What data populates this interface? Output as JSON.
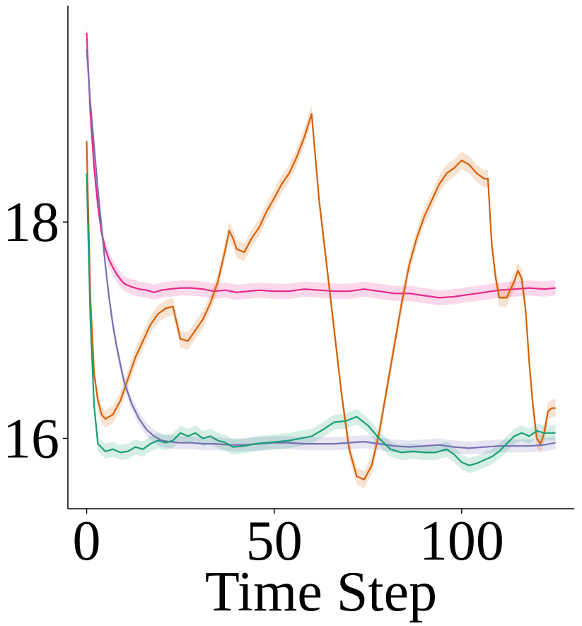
{
  "chart_data": {
    "type": "line",
    "title": "",
    "xlabel": "Time Step",
    "ylabel": "",
    "xlim": [
      -5,
      130
    ],
    "ylim": [
      15.35,
      20.0
    ],
    "xticks": [
      0,
      50,
      100
    ],
    "xtick_labels": [
      "0",
      "50",
      "100"
    ],
    "yticks": [
      16,
      18
    ],
    "ytick_labels": [
      "16",
      "18"
    ],
    "grid": false,
    "legend": "none",
    "series": [
      {
        "color": "#e7298a",
        "band": 0.07,
        "points": [
          [
            0,
            19.75
          ],
          [
            1,
            19.0
          ],
          [
            2,
            18.5
          ],
          [
            3,
            18.15
          ],
          [
            4,
            17.9
          ],
          [
            5,
            17.75
          ],
          [
            6,
            17.65
          ],
          [
            7,
            17.58
          ],
          [
            8,
            17.52
          ],
          [
            9,
            17.47
          ],
          [
            10,
            17.43
          ],
          [
            12,
            17.4
          ],
          [
            14,
            17.38
          ],
          [
            16,
            17.37
          ],
          [
            18,
            17.35
          ],
          [
            20,
            17.37
          ],
          [
            22,
            17.38
          ],
          [
            25,
            17.39
          ],
          [
            28,
            17.39
          ],
          [
            31,
            17.38
          ],
          [
            34,
            17.36
          ],
          [
            37,
            17.37
          ],
          [
            40,
            17.35
          ],
          [
            43,
            17.36
          ],
          [
            46,
            17.37
          ],
          [
            50,
            17.36
          ],
          [
            54,
            17.36
          ],
          [
            58,
            17.38
          ],
          [
            62,
            17.37
          ],
          [
            66,
            17.36
          ],
          [
            70,
            17.36
          ],
          [
            74,
            17.38
          ],
          [
            78,
            17.36
          ],
          [
            82,
            17.34
          ],
          [
            86,
            17.34
          ],
          [
            90,
            17.32
          ],
          [
            94,
            17.3
          ],
          [
            98,
            17.31
          ],
          [
            102,
            17.33
          ],
          [
            106,
            17.35
          ],
          [
            110,
            17.37
          ],
          [
            114,
            17.38
          ],
          [
            118,
            17.39
          ],
          [
            122,
            17.38
          ],
          [
            125,
            17.39
          ]
        ]
      },
      {
        "color": "#d95f02",
        "band": 0.08,
        "points": [
          [
            0,
            18.75
          ],
          [
            1,
            17.3
          ],
          [
            2,
            16.6
          ],
          [
            3,
            16.35
          ],
          [
            4,
            16.22
          ],
          [
            5,
            16.18
          ],
          [
            7,
            16.22
          ],
          [
            9,
            16.35
          ],
          [
            11,
            16.55
          ],
          [
            13,
            16.75
          ],
          [
            15,
            16.9
          ],
          [
            17,
            17.05
          ],
          [
            19,
            17.15
          ],
          [
            21,
            17.2
          ],
          [
            23,
            17.22
          ],
          [
            25,
            16.92
          ],
          [
            27,
            16.9
          ],
          [
            29,
            17.0
          ],
          [
            31,
            17.1
          ],
          [
            33,
            17.25
          ],
          [
            35,
            17.45
          ],
          [
            37,
            17.75
          ],
          [
            38,
            17.92
          ],
          [
            39,
            17.85
          ],
          [
            40,
            17.75
          ],
          [
            42,
            17.72
          ],
          [
            44,
            17.85
          ],
          [
            46,
            17.95
          ],
          [
            48,
            18.1
          ],
          [
            50,
            18.22
          ],
          [
            52,
            18.35
          ],
          [
            54,
            18.45
          ],
          [
            56,
            18.6
          ],
          [
            58,
            18.78
          ],
          [
            60,
            19.0
          ],
          [
            61,
            18.6
          ],
          [
            62,
            18.2
          ],
          [
            64,
            17.6
          ],
          [
            66,
            17.0
          ],
          [
            68,
            16.4
          ],
          [
            70,
            15.9
          ],
          [
            72,
            15.65
          ],
          [
            74,
            15.62
          ],
          [
            76,
            15.75
          ],
          [
            78,
            16.05
          ],
          [
            80,
            16.45
          ],
          [
            82,
            16.85
          ],
          [
            84,
            17.25
          ],
          [
            86,
            17.6
          ],
          [
            88,
            17.85
          ],
          [
            90,
            18.05
          ],
          [
            92,
            18.2
          ],
          [
            94,
            18.35
          ],
          [
            96,
            18.45
          ],
          [
            98,
            18.5
          ],
          [
            100,
            18.57
          ],
          [
            102,
            18.53
          ],
          [
            104,
            18.45
          ],
          [
            106,
            18.4
          ],
          [
            107,
            18.4
          ],
          [
            108,
            17.8
          ],
          [
            109,
            17.5
          ],
          [
            110,
            17.3
          ],
          [
            112,
            17.3
          ],
          [
            114,
            17.45
          ],
          [
            115,
            17.55
          ],
          [
            116,
            17.48
          ],
          [
            117,
            17.2
          ],
          [
            118,
            16.7
          ],
          [
            119,
            16.3
          ],
          [
            120,
            16.0
          ],
          [
            121,
            15.95
          ],
          [
            122,
            16.05
          ],
          [
            123,
            16.25
          ],
          [
            124,
            16.28
          ],
          [
            125,
            16.28
          ]
        ]
      },
      {
        "color": "#7570b3",
        "band": 0.06,
        "points": [
          [
            0,
            19.6
          ],
          [
            1,
            19.1
          ],
          [
            2,
            18.7
          ],
          [
            3,
            18.3
          ],
          [
            4,
            17.95
          ],
          [
            5,
            17.6
          ],
          [
            6,
            17.3
          ],
          [
            7,
            17.05
          ],
          [
            8,
            16.85
          ],
          [
            9,
            16.68
          ],
          [
            10,
            16.52
          ],
          [
            12,
            16.32
          ],
          [
            14,
            16.18
          ],
          [
            16,
            16.08
          ],
          [
            18,
            16.02
          ],
          [
            20,
            15.98
          ],
          [
            22,
            15.97
          ],
          [
            25,
            15.96
          ],
          [
            28,
            15.96
          ],
          [
            31,
            15.95
          ],
          [
            34,
            15.95
          ],
          [
            38,
            15.94
          ],
          [
            42,
            15.94
          ],
          [
            46,
            15.95
          ],
          [
            50,
            15.96
          ],
          [
            54,
            15.96
          ],
          [
            58,
            15.95
          ],
          [
            62,
            15.95
          ],
          [
            66,
            15.95
          ],
          [
            70,
            15.96
          ],
          [
            74,
            15.97
          ],
          [
            78,
            15.95
          ],
          [
            82,
            15.93
          ],
          [
            86,
            15.92
          ],
          [
            90,
            15.93
          ],
          [
            94,
            15.94
          ],
          [
            98,
            15.92
          ],
          [
            102,
            15.91
          ],
          [
            106,
            15.92
          ],
          [
            110,
            15.93
          ],
          [
            114,
            15.93
          ],
          [
            118,
            15.93
          ],
          [
            122,
            15.94
          ],
          [
            125,
            15.96
          ]
        ]
      },
      {
        "color": "#1b9e77",
        "band": 0.07,
        "points": [
          [
            0,
            18.45
          ],
          [
            1,
            17.1
          ],
          [
            2,
            16.3
          ],
          [
            3,
            15.95
          ],
          [
            5,
            15.88
          ],
          [
            7,
            15.9
          ],
          [
            9,
            15.87
          ],
          [
            11,
            15.88
          ],
          [
            13,
            15.92
          ],
          [
            15,
            15.9
          ],
          [
            17,
            15.95
          ],
          [
            19,
            15.98
          ],
          [
            21,
            15.96
          ],
          [
            23,
            15.98
          ],
          [
            25,
            16.05
          ],
          [
            27,
            16.02
          ],
          [
            29,
            16.05
          ],
          [
            31,
            16.0
          ],
          [
            33,
            16.02
          ],
          [
            35,
            15.98
          ],
          [
            37,
            15.96
          ],
          [
            39,
            15.92
          ],
          [
            42,
            15.93
          ],
          [
            45,
            15.95
          ],
          [
            48,
            15.96
          ],
          [
            51,
            15.97
          ],
          [
            54,
            15.98
          ],
          [
            57,
            16.0
          ],
          [
            60,
            16.02
          ],
          [
            63,
            16.08
          ],
          [
            66,
            16.15
          ],
          [
            69,
            16.16
          ],
          [
            72,
            16.2
          ],
          [
            75,
            16.12
          ],
          [
            78,
            16.0
          ],
          [
            81,
            15.9
          ],
          [
            84,
            15.87
          ],
          [
            87,
            15.88
          ],
          [
            90,
            15.87
          ],
          [
            93,
            15.87
          ],
          [
            96,
            15.9
          ],
          [
            98,
            15.85
          ],
          [
            100,
            15.78
          ],
          [
            102,
            15.75
          ],
          [
            104,
            15.77
          ],
          [
            106,
            15.8
          ],
          [
            108,
            15.83
          ],
          [
            110,
            15.88
          ],
          [
            112,
            15.95
          ],
          [
            114,
            16.02
          ],
          [
            116,
            16.05
          ],
          [
            118,
            16.02
          ],
          [
            120,
            16.07
          ],
          [
            122,
            16.05
          ],
          [
            125,
            16.05
          ]
        ]
      }
    ]
  }
}
